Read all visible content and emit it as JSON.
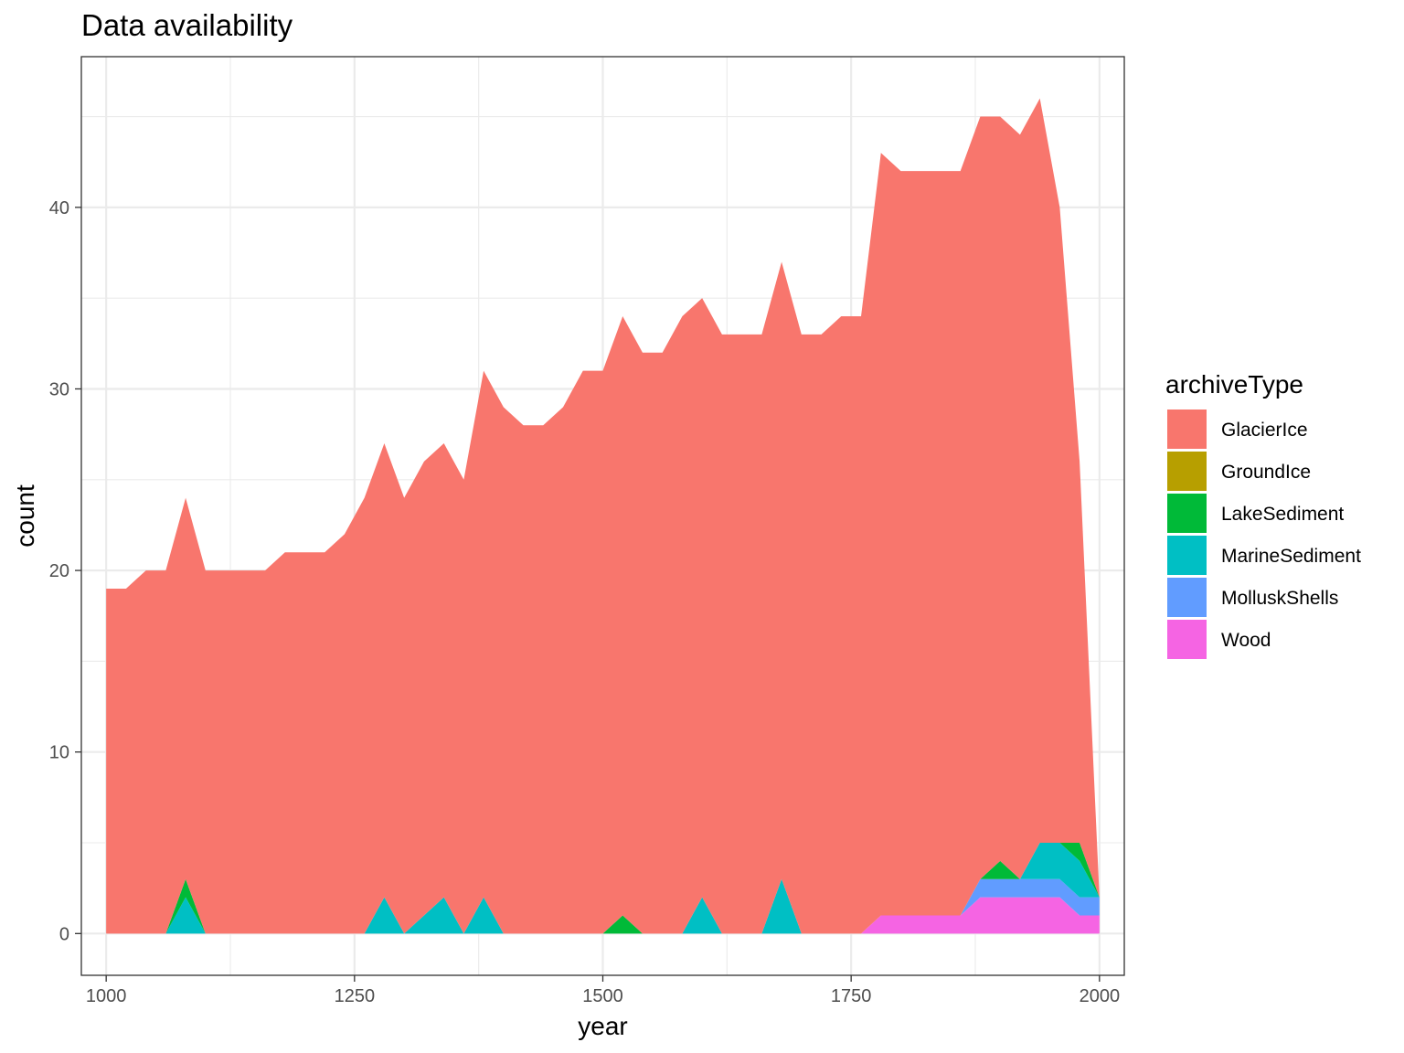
{
  "chart_data": {
    "type": "area",
    "stacked": true,
    "title": "Data availability",
    "xlabel": "year",
    "ylabel": "count",
    "xlim": [
      975,
      2025
    ],
    "ylim": [
      -2.3,
      48.3
    ],
    "x_ticks": [
      1000,
      1250,
      1500,
      1750,
      2000
    ],
    "y_ticks": [
      0,
      10,
      20,
      30,
      40
    ],
    "grid": true,
    "legend_position": "right",
    "legend_title": "archiveType",
    "stack_order_top_to_bottom": [
      "GlacierIce",
      "GroundIce",
      "LakeSediment",
      "MarineSediment",
      "MolluskShells",
      "Wood"
    ],
    "x": [
      1000,
      1020,
      1040,
      1060,
      1080,
      1100,
      1120,
      1140,
      1160,
      1180,
      1200,
      1220,
      1240,
      1260,
      1280,
      1300,
      1320,
      1340,
      1360,
      1380,
      1400,
      1420,
      1440,
      1460,
      1480,
      1500,
      1520,
      1540,
      1560,
      1580,
      1600,
      1620,
      1640,
      1660,
      1680,
      1700,
      1720,
      1740,
      1760,
      1780,
      1800,
      1820,
      1840,
      1860,
      1880,
      1900,
      1920,
      1940,
      1960,
      1980,
      2000
    ],
    "series": [
      {
        "name": "GlacierIce",
        "color": "#F8766D",
        "values": [
          19,
          19,
          20,
          20,
          21,
          20,
          20,
          20,
          20,
          21,
          21,
          21,
          22,
          24,
          25,
          24,
          25,
          25,
          25,
          29,
          29,
          28,
          28,
          29,
          31,
          31,
          33,
          32,
          32,
          34,
          33,
          33,
          33,
          33,
          34,
          33,
          33,
          34,
          34,
          42,
          41,
          41,
          41,
          41,
          42,
          41,
          41,
          41,
          35,
          21,
          0
        ]
      },
      {
        "name": "GroundIce",
        "color": "#B79F00",
        "values": [
          0,
          0,
          0,
          0,
          0,
          0,
          0,
          0,
          0,
          0,
          0,
          0,
          0,
          0,
          0,
          0,
          0,
          0,
          0,
          0,
          0,
          0,
          0,
          0,
          0,
          0,
          0,
          0,
          0,
          0,
          0,
          0,
          0,
          0,
          0,
          0,
          0,
          0,
          0,
          0,
          0,
          0,
          0,
          0,
          0,
          0,
          0,
          0,
          0,
          0,
          0
        ]
      },
      {
        "name": "LakeSediment",
        "color": "#00BA38",
        "values": [
          0,
          0,
          0,
          0,
          1,
          0,
          0,
          0,
          0,
          0,
          0,
          0,
          0,
          0,
          0,
          0,
          0,
          0,
          0,
          0,
          0,
          0,
          0,
          0,
          0,
          0,
          1,
          0,
          0,
          0,
          0,
          0,
          0,
          0,
          0,
          0,
          0,
          0,
          0,
          0,
          0,
          0,
          0,
          0,
          0,
          1,
          0,
          0,
          0,
          1,
          0
        ]
      },
      {
        "name": "MarineSediment",
        "color": "#00BFC4",
        "values": [
          0,
          0,
          0,
          0,
          2,
          0,
          0,
          0,
          0,
          0,
          0,
          0,
          0,
          0,
          2,
          0,
          1,
          2,
          0,
          2,
          0,
          0,
          0,
          0,
          0,
          0,
          0,
          0,
          0,
          0,
          2,
          0,
          0,
          0,
          3,
          0,
          0,
          0,
          0,
          0,
          0,
          0,
          0,
          0,
          0,
          0,
          0,
          2,
          2,
          2,
          0
        ]
      },
      {
        "name": "MolluskShells",
        "color": "#619CFF",
        "values": [
          0,
          0,
          0,
          0,
          0,
          0,
          0,
          0,
          0,
          0,
          0,
          0,
          0,
          0,
          0,
          0,
          0,
          0,
          0,
          0,
          0,
          0,
          0,
          0,
          0,
          0,
          0,
          0,
          0,
          0,
          0,
          0,
          0,
          0,
          0,
          0,
          0,
          0,
          0,
          0,
          0,
          0,
          0,
          0,
          1,
          1,
          1,
          1,
          1,
          1,
          1
        ]
      },
      {
        "name": "Wood",
        "color": "#F564E3",
        "values": [
          0,
          0,
          0,
          0,
          0,
          0,
          0,
          0,
          0,
          0,
          0,
          0,
          0,
          0,
          0,
          0,
          0,
          0,
          0,
          0,
          0,
          0,
          0,
          0,
          0,
          0,
          0,
          0,
          0,
          0,
          0,
          0,
          0,
          0,
          0,
          0,
          0,
          0,
          0,
          1,
          1,
          1,
          1,
          1,
          2,
          2,
          2,
          2,
          2,
          1,
          1
        ]
      }
    ]
  }
}
